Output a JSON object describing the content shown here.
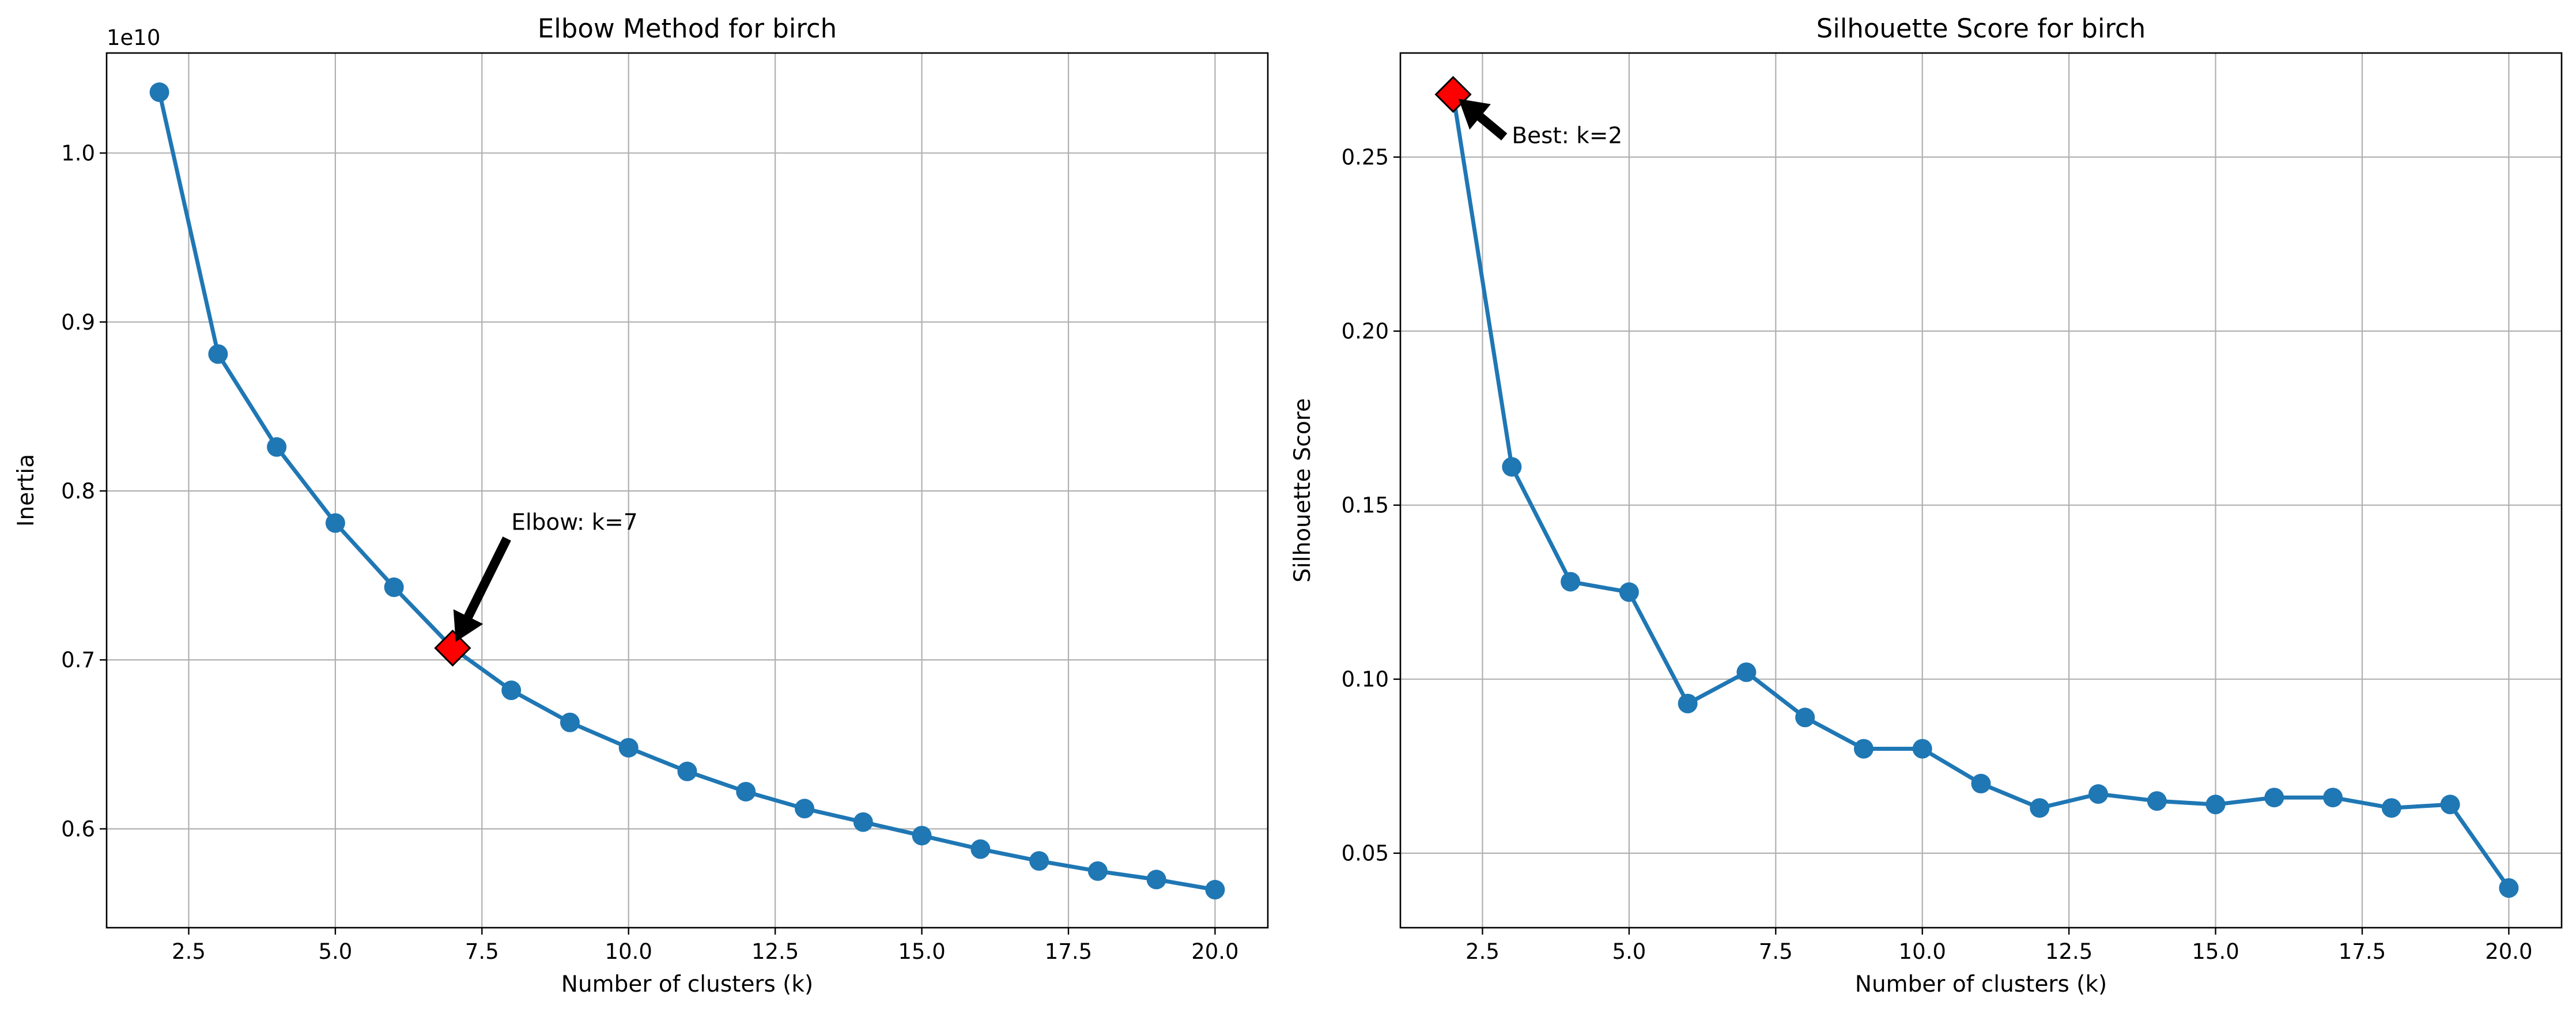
{
  "colors": {
    "line": "#1f77b4",
    "highlight": "#ff0000",
    "grid": "#b0b0b0",
    "arrow": "#000000"
  },
  "chart_data": [
    {
      "type": "line",
      "title": "Elbow Method for birch",
      "xlabel": "Number of clusters (k)",
      "ylabel": "Inertia",
      "y_offset_label": "1e10",
      "xlim": [
        1.1,
        20.9
      ],
      "ylim": [
        0.5415,
        1.0592
      ],
      "xticks": [
        2.5,
        5.0,
        7.5,
        10.0,
        12.5,
        15.0,
        17.5,
        20.0
      ],
      "xtick_labels": [
        "2.5",
        "5.0",
        "7.5",
        "10.0",
        "12.5",
        "15.0",
        "17.5",
        "20.0"
      ],
      "yticks": [
        0.6,
        0.7,
        0.8,
        0.9,
        1.0
      ],
      "ytick_labels": [
        "0.6",
        "0.7",
        "0.8",
        "0.9",
        "1.0"
      ],
      "grid": true,
      "series": [
        {
          "x": [
            2,
            3,
            4,
            5,
            6,
            7,
            8,
            9,
            10,
            11,
            12,
            13,
            14,
            15,
            16,
            17,
            18,
            19,
            20
          ],
          "values": [
            1.036,
            0.881,
            0.826,
            0.781,
            0.743,
            0.707,
            0.682,
            0.663,
            0.648,
            0.634,
            0.622,
            0.612,
            0.604,
            0.596,
            0.588,
            0.581,
            0.575,
            0.57,
            0.564
          ]
        }
      ],
      "highlight": {
        "x": 7,
        "y": 0.707
      },
      "annotation": {
        "text": "Elbow: k=7",
        "x": 7,
        "y": 0.707,
        "text_x": 8.0,
        "text_y": 0.777
      }
    },
    {
      "type": "line",
      "title": "Silhouette Score for birch",
      "xlabel": "Number of clusters (k)",
      "ylabel": "Silhouette Score",
      "xlim": [
        1.1,
        20.9
      ],
      "ylim": [
        0.0286,
        0.2799
      ],
      "xticks": [
        2.5,
        5.0,
        7.5,
        10.0,
        12.5,
        15.0,
        17.5,
        20.0
      ],
      "xtick_labels": [
        "2.5",
        "5.0",
        "7.5",
        "10.0",
        "12.5",
        "15.0",
        "17.5",
        "20.0"
      ],
      "yticks": [
        0.05,
        0.1,
        0.15,
        0.2,
        0.25
      ],
      "ytick_labels": [
        "0.05",
        "0.10",
        "0.15",
        "0.20",
        "0.25"
      ],
      "grid": true,
      "series": [
        {
          "x": [
            2,
            3,
            4,
            5,
            6,
            7,
            8,
            9,
            10,
            11,
            12,
            13,
            14,
            15,
            16,
            17,
            18,
            19,
            20
          ],
          "values": [
            0.268,
            0.161,
            0.128,
            0.125,
            0.093,
            0.102,
            0.089,
            0.08,
            0.08,
            0.07,
            0.063,
            0.067,
            0.065,
            0.064,
            0.066,
            0.066,
            0.063,
            0.064,
            0.04
          ]
        }
      ],
      "highlight": {
        "x": 2,
        "y": 0.268
      },
      "annotation": {
        "text": "Best: k=2",
        "x": 2,
        "y": 0.268,
        "text_x": 3.0,
        "text_y": 0.254
      }
    }
  ]
}
